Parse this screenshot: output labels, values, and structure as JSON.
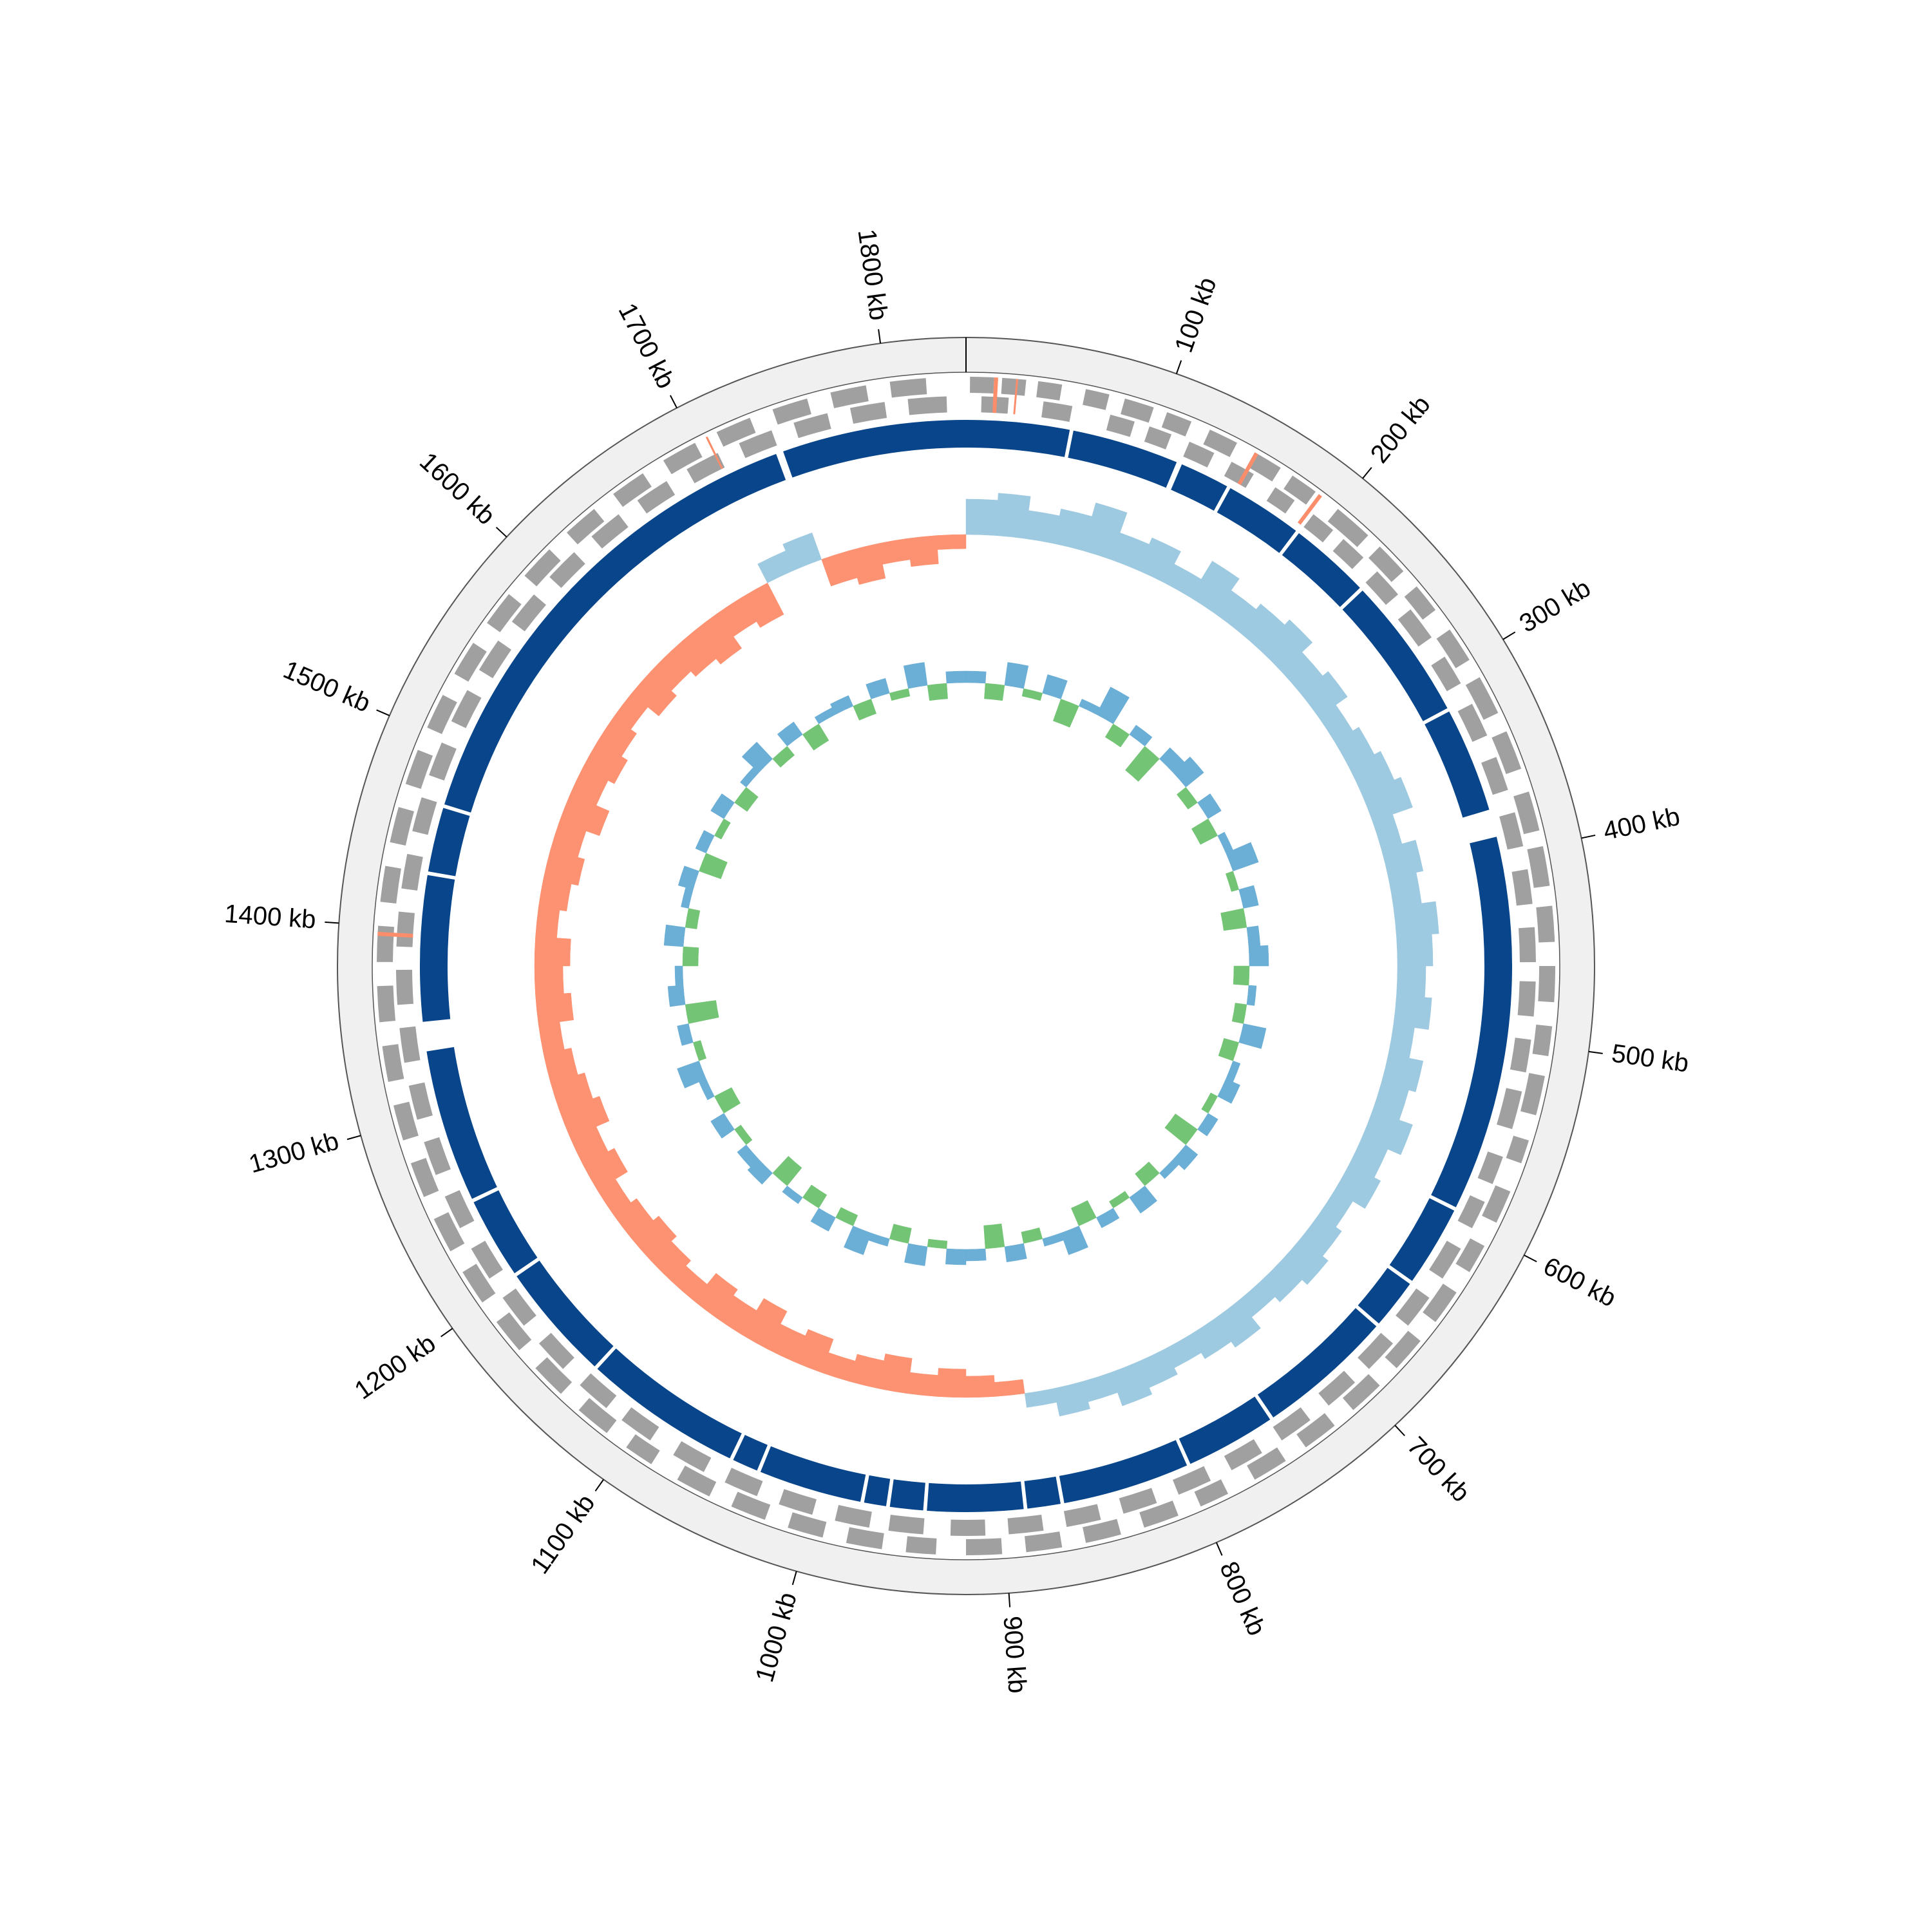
{
  "chart_data": {
    "type": "circular-genome",
    "xlim": [
      0,
      1840
    ],
    "xticks": [
      {
        "value": 100,
        "label": "100 kb"
      },
      {
        "value": 200,
        "label": "200 kb"
      },
      {
        "value": 300,
        "label": "300 kb"
      },
      {
        "value": 400,
        "label": "400 kb"
      },
      {
        "value": 500,
        "label": "500 kb"
      },
      {
        "value": 600,
        "label": "600 kb"
      },
      {
        "value": 700,
        "label": "700 kb"
      },
      {
        "value": 800,
        "label": "800 kb"
      },
      {
        "value": 900,
        "label": "900 kb"
      },
      {
        "value": 1000,
        "label": "1000 kb"
      },
      {
        "value": 1100,
        "label": "1100 kb"
      },
      {
        "value": 1200,
        "label": "1200 kb"
      },
      {
        "value": 1300,
        "label": "1300 kb"
      },
      {
        "value": 1400,
        "label": "1400 kb"
      },
      {
        "value": 1500,
        "label": "1500 kb"
      },
      {
        "value": 1600,
        "label": "1600 kb"
      },
      {
        "value": 1700,
        "label": "1700 kb"
      },
      {
        "value": 1800,
        "label": "1800 kb"
      }
    ],
    "genes_forward": {
      "color": "#a0a0a0",
      "intervals": [
        [
          2,
          14
        ],
        [
          18,
          30
        ],
        [
          36,
          48
        ],
        [
          60,
          72
        ],
        [
          80,
          95
        ],
        [
          102,
          115
        ],
        [
          125,
          140
        ],
        [
          150,
          165
        ],
        [
          172,
          186
        ],
        [
          200,
          220
        ],
        [
          228,
          245
        ],
        [
          255,
          270
        ],
        [
          282,
          300
        ],
        [
          310,
          330
        ],
        [
          340,
          360
        ],
        [
          372,
          392
        ],
        [
          400,
          420
        ],
        [
          430,
          448
        ],
        [
          460,
          478
        ],
        [
          490,
          505
        ],
        [
          515,
          535
        ],
        [
          548,
          560
        ],
        [
          575,
          592
        ],
        [
          605,
          620
        ],
        [
          632,
          650
        ],
        [
          662,
          680
        ],
        [
          692,
          710
        ],
        [
          722,
          740
        ],
        [
          752,
          770
        ],
        [
          785,
          800
        ],
        [
          812,
          830
        ],
        [
          842,
          860
        ],
        [
          872,
          890
        ],
        [
          902,
          920
        ],
        [
          935,
          950
        ],
        [
          962,
          980
        ],
        [
          992,
          1010
        ],
        [
          1022,
          1040
        ],
        [
          1052,
          1070
        ],
        [
          1085,
          1100
        ],
        [
          1112,
          1130
        ],
        [
          1142,
          1160
        ],
        [
          1172,
          1190
        ],
        [
          1202,
          1220
        ],
        [
          1232,
          1250
        ],
        [
          1262,
          1280
        ],
        [
          1292,
          1310
        ],
        [
          1322,
          1340
        ],
        [
          1352,
          1370
        ],
        [
          1382,
          1400
        ],
        [
          1412,
          1430
        ],
        [
          1442,
          1460
        ],
        [
          1472,
          1490
        ],
        [
          1502,
          1520
        ],
        [
          1532,
          1550
        ],
        [
          1562,
          1580
        ],
        [
          1592,
          1610
        ],
        [
          1622,
          1640
        ],
        [
          1652,
          1670
        ],
        [
          1682,
          1700
        ],
        [
          1712,
          1730
        ],
        [
          1742,
          1760
        ],
        [
          1772,
          1790
        ],
        [
          1802,
          1820
        ]
      ]
    },
    "genes_reverse": {
      "color": "#a0a0a0",
      "intervals": [
        [
          8,
          22
        ],
        [
          40,
          55
        ],
        [
          75,
          88
        ],
        [
          96,
          108
        ],
        [
          118,
          132
        ],
        [
          142,
          155
        ],
        [
          168,
          180
        ],
        [
          192,
          205
        ],
        [
          212,
          226
        ],
        [
          236,
          252
        ],
        [
          262,
          280
        ],
        [
          292,
          308
        ],
        [
          320,
          338
        ],
        [
          350,
          368
        ],
        [
          380,
          398
        ],
        [
          410,
          428
        ],
        [
          440,
          458
        ],
        [
          468,
          486
        ],
        [
          498,
          515
        ],
        [
          525,
          545
        ],
        [
          560,
          575
        ],
        [
          585,
          600
        ],
        [
          612,
          630
        ],
        [
          642,
          660
        ],
        [
          672,
          690
        ],
        [
          700,
          718
        ],
        [
          730,
          748
        ],
        [
          760,
          778
        ],
        [
          790,
          808
        ],
        [
          820,
          838
        ],
        [
          850,
          868
        ],
        [
          880,
          898
        ],
        [
          910,
          928
        ],
        [
          942,
          960
        ],
        [
          970,
          988
        ],
        [
          1000,
          1018
        ],
        [
          1030,
          1048
        ],
        [
          1060,
          1078
        ],
        [
          1092,
          1110
        ],
        [
          1120,
          1138
        ],
        [
          1150,
          1168
        ],
        [
          1180,
          1198
        ],
        [
          1210,
          1228
        ],
        [
          1240,
          1258
        ],
        [
          1270,
          1288
        ],
        [
          1300,
          1318
        ],
        [
          1330,
          1348
        ],
        [
          1360,
          1378
        ],
        [
          1390,
          1408
        ],
        [
          1420,
          1438
        ],
        [
          1450,
          1468
        ],
        [
          1480,
          1498
        ],
        [
          1510,
          1528
        ],
        [
          1540,
          1558
        ],
        [
          1570,
          1588
        ],
        [
          1600,
          1618
        ],
        [
          1630,
          1648
        ],
        [
          1660,
          1678
        ],
        [
          1690,
          1708
        ],
        [
          1720,
          1738
        ],
        [
          1750,
          1768
        ],
        [
          1780,
          1798
        ],
        [
          1810,
          1830
        ]
      ]
    },
    "rna": {
      "color": "#fc8d6a",
      "intervals": [
        [
          14,
          16
        ],
        [
          25,
          26
        ],
        [
          150,
          152
        ],
        [
          188,
          190
        ],
        [
          1395,
          1397
        ],
        [
          1706,
          1707
        ]
      ]
    },
    "contigs": {
      "color": "#08458a",
      "intervals": [
        [
          1740,
          56
        ],
        [
          58,
          116
        ],
        [
          119,
          146
        ],
        [
          148,
          190
        ],
        [
          192,
          236
        ],
        [
          238,
          316
        ],
        [
          318,
          375
        ],
        [
          390,
          594
        ],
        [
          596,
          640
        ],
        [
          642,
          669
        ],
        [
          671,
          745
        ],
        [
          747,
          796
        ],
        [
          798,
          867
        ],
        [
          869,
          887
        ],
        [
          889,
          941
        ],
        [
          943,
          961
        ],
        [
          963,
          975
        ],
        [
          977,
          1033
        ],
        [
          1035,
          1049
        ],
        [
          1051,
          1137
        ],
        [
          1139,
          1203
        ],
        [
          1205,
          1249
        ],
        [
          1251,
          1334
        ],
        [
          1350,
          1429
        ],
        [
          1431,
          1466
        ],
        [
          1468,
          1736
        ]
      ]
    },
    "bins": [
      0,
      20,
      40,
      60,
      80,
      100,
      120,
      140,
      160,
      180,
      200,
      220,
      240,
      260,
      280,
      300,
      320,
      340,
      360,
      380,
      400,
      420,
      440,
      460,
      480,
      500,
      520,
      540,
      560,
      580,
      600,
      620,
      640,
      660,
      680,
      700,
      720,
      740,
      760,
      780,
      800,
      820,
      840,
      860,
      880,
      900,
      920,
      940,
      960,
      980,
      1000,
      1020,
      1040,
      1060,
      1080,
      1100,
      1120,
      1140,
      1160,
      1180,
      1200,
      1220,
      1240,
      1260,
      1280,
      1300,
      1320,
      1340,
      1360,
      1380,
      1400,
      1420,
      1440,
      1460,
      1480,
      1500,
      1520,
      1540,
      1560,
      1580,
      1600,
      1620,
      1640,
      1660,
      1680,
      1700,
      1720,
      1740,
      1760,
      1780,
      1800,
      1820,
      1840
    ],
    "gc_skew": {
      "ylim": [
        -0.1,
        0.1
      ],
      "positive_color": "#9ecae1",
      "negative_color": "#fc9272",
      "values": [
        0.05,
        0.06,
        0.04,
        0.05,
        0.07,
        0.04,
        0.05,
        0.03,
        0.06,
        0.04,
        0.05,
        0.06,
        0.04,
        0.05,
        0.03,
        0.04,
        0.05,
        0.06,
        0.03,
        0.05,
        0.04,
        0.06,
        0.05,
        0.04,
        0.05,
        0.03,
        0.05,
        0.04,
        0.06,
        0.04,
        0.05,
        0.03,
        0.04,
        0.05,
        0.04,
        0.03,
        0.05,
        0.04,
        0.03,
        0.04,
        0.05,
        0.03,
        0.04,
        0.02,
        -0.02,
        -0.03,
        -0.04,
        -0.03,
        -0.05,
        -0.04,
        -0.03,
        -0.05,
        -0.04,
        -0.06,
        -0.04,
        -0.05,
        -0.03,
        -0.04,
        -0.05,
        -0.04,
        -0.03,
        -0.05,
        -0.04,
        -0.06,
        -0.05,
        -0.04,
        -0.03,
        -0.05,
        -0.04,
        -0.05,
        -0.03,
        -0.04,
        -0.05,
        -0.04,
        -0.06,
        -0.04,
        -0.05,
        -0.04,
        -0.03,
        -0.05,
        -0.04,
        -0.05,
        -0.06,
        -0.04,
        -0.05,
        0.03,
        0.04,
        -0.04,
        -0.05,
        -0.03,
        -0.04,
        -0.02
      ]
    },
    "gc_content": {
      "ylim": [
        -10,
        10
      ],
      "positive_color": "#6baed6",
      "negative_color": "#74c476",
      "values": [
        1.5,
        -2,
        3,
        -1,
        2.5,
        -3,
        1,
        4,
        -2,
        1.5,
        -4,
        2,
        3,
        -1.5,
        2,
        -2.5,
        1,
        3.5,
        -1,
        2,
        -3,
        1.5,
        2.5,
        -2,
        1,
        -1.5,
        3,
        -2,
        1,
        2,
        -1,
        1.5,
        -3.5,
        2,
        1,
        -2,
        2.5,
        -1,
        1.5,
        -2.5,
        3,
        1,
        -1.5,
        2,
        -3,
        1.5,
        2,
        -1,
        2.5,
        -2,
        1,
        3,
        -1.5,
        2,
        -2,
        1,
        -3,
        2,
        1.5,
        -1,
        2,
        -2.5,
        1,
        3,
        -1,
        1.5,
        -4,
        2,
        1,
        -2,
        2.5,
        -1.5,
        1,
        2,
        -3,
        1.5,
        -1,
        2,
        -2,
        1,
        3,
        -1.5,
        2,
        -2.5,
        1,
        1.5,
        -2,
        2,
        -1,
        3,
        -2,
        1.5
      ]
    }
  }
}
